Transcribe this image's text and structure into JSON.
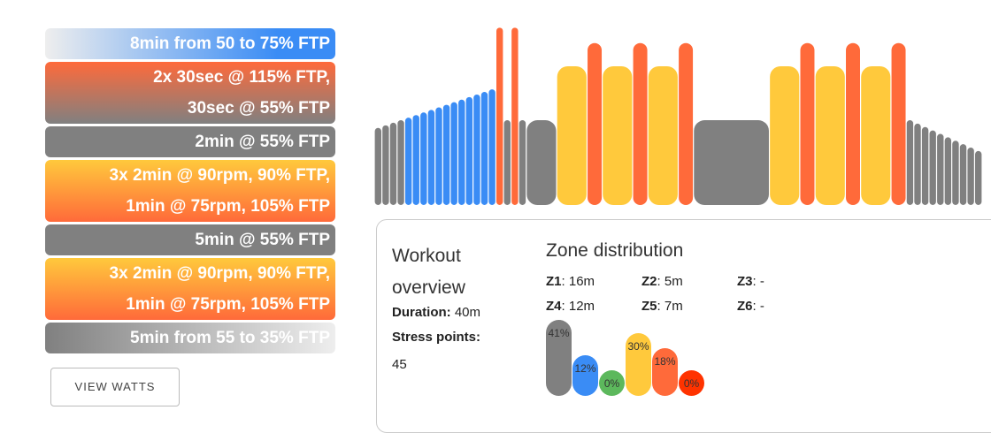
{
  "steps": [
    {
      "lines": [
        "8min from 50 to 75% FTP"
      ],
      "bg": "linear-gradient(90deg,#eee,#3a8cf5 80%)"
    },
    {
      "lines": [
        "2x 30sec @ 115% FTP,",
        "30sec @ 55% FTP"
      ],
      "bg": "linear-gradient(180deg,#ff6a3a,#808080)"
    },
    {
      "lines": [
        "2min @ 55% FTP"
      ],
      "bg": "#808080"
    },
    {
      "lines": [
        "3x 2min @ 90rpm, 90% FTP,",
        "1min @ 75rpm, 105% FTP"
      ],
      "bg": "linear-gradient(180deg,#ffc93c,#ff6a3a)"
    },
    {
      "lines": [
        "5min @ 55% FTP"
      ],
      "bg": "#808080"
    },
    {
      "lines": [
        "3x 2min @ 90rpm, 90% FTP,",
        "1min @ 75rpm, 105% FTP"
      ],
      "bg": "linear-gradient(180deg,#ffc93c,#ff6a3a)"
    },
    {
      "lines": [
        "5min from 55 to 35% FTP"
      ],
      "bg": "linear-gradient(90deg,#808080,#eee)"
    }
  ],
  "view_watts": "VIEW WATTS",
  "overview": {
    "title": "Workout overview",
    "duration_label": "Duration:",
    "duration": "40m",
    "stress_label": "Stress points:",
    "stress": "45"
  },
  "zones": {
    "title": "Zone distribution",
    "items": [
      {
        "k": "Z1",
        "v": "16m"
      },
      {
        "k": "Z2",
        "v": "5m"
      },
      {
        "k": "Z3",
        "v": "-"
      },
      {
        "k": "Z4",
        "v": "12m"
      },
      {
        "k": "Z5",
        "v": "7m"
      },
      {
        "k": "Z6",
        "v": "-"
      }
    ],
    "bars": [
      {
        "pct": 41,
        "label": "41%",
        "color": "#808080"
      },
      {
        "pct": 12,
        "label": "12%",
        "color": "#3a8cf5"
      },
      {
        "pct": 0,
        "label": "0%",
        "color": "#5cb85c"
      },
      {
        "pct": 30,
        "label": "30%",
        "color": "#ffc93c"
      },
      {
        "pct": 18,
        "label": "18%",
        "color": "#ff6a3a"
      },
      {
        "pct": 0,
        "label": "0%",
        "color": "#ff3300"
      }
    ]
  },
  "chart_data": {
    "type": "bar",
    "unit": "% FTP over minutes",
    "segments": [
      {
        "ramp": [
          50,
          75
        ],
        "min": 8,
        "steps": 16
      },
      {
        "min": 0.5,
        "p": 115
      },
      {
        "min": 0.5,
        "p": 55
      },
      {
        "min": 0.5,
        "p": 115
      },
      {
        "min": 0.5,
        "p": 55
      },
      {
        "min": 2,
        "p": 55
      },
      {
        "min": 2,
        "p": 90
      },
      {
        "min": 1,
        "p": 105
      },
      {
        "min": 2,
        "p": 90
      },
      {
        "min": 1,
        "p": 105
      },
      {
        "min": 2,
        "p": 90
      },
      {
        "min": 1,
        "p": 105
      },
      {
        "min": 5,
        "p": 55
      },
      {
        "min": 2,
        "p": 90
      },
      {
        "min": 1,
        "p": 105
      },
      {
        "min": 2,
        "p": 90
      },
      {
        "min": 1,
        "p": 105
      },
      {
        "min": 2,
        "p": 90
      },
      {
        "min": 1,
        "p": 105
      },
      {
        "ramp": [
          55,
          35
        ],
        "min": 5,
        "steps": 10
      }
    ]
  }
}
